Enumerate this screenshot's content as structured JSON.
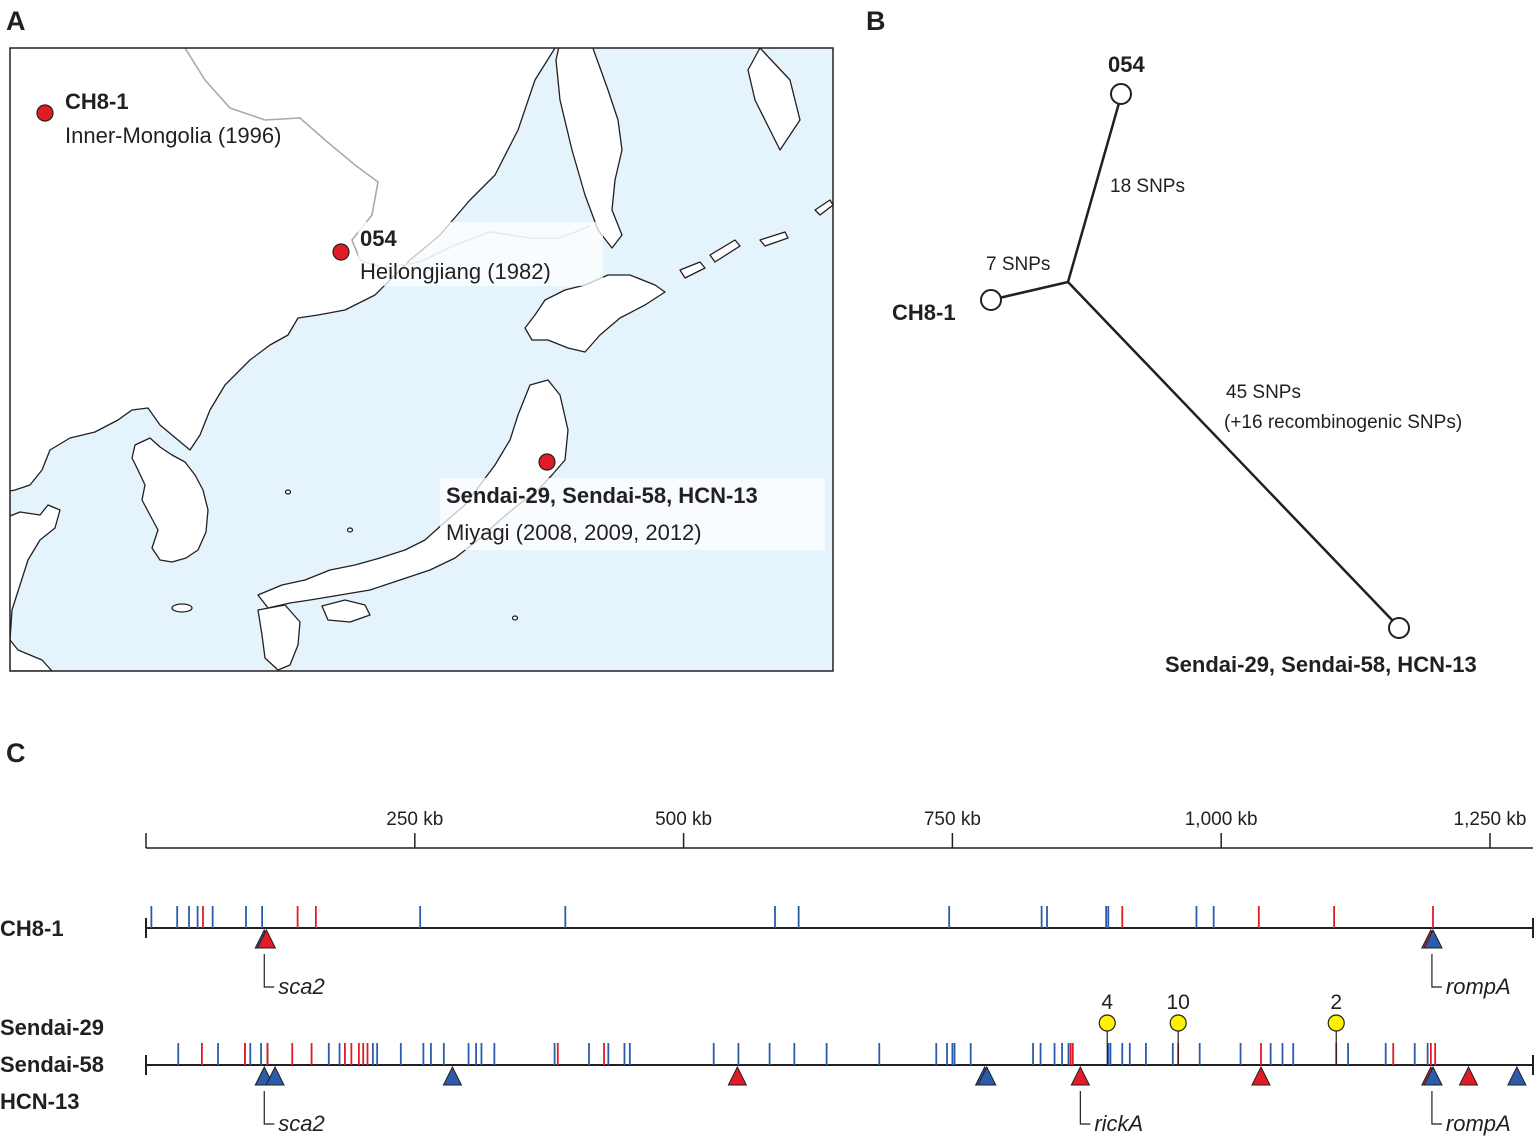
{
  "panels": {
    "a": {
      "letter": "A"
    },
    "b": {
      "letter": "B"
    },
    "c": {
      "letter": "C"
    }
  },
  "map": {
    "colors": {
      "sea": "#e5f3fc",
      "land": "#ffffff",
      "marker": "#e21c26",
      "border": "#aaaaaa"
    },
    "locations": [
      {
        "strain": "CH8-1",
        "place": "Inner-Mongolia (1996)"
      },
      {
        "strain": "054",
        "place": "Heilongjiang (1982)"
      },
      {
        "strain": "Sendai-29, Sendai-58, HCN-13",
        "place": "Miyagi (2008, 2009, 2012)"
      }
    ]
  },
  "tree": {
    "nodes": [
      {
        "label": "054"
      },
      {
        "label": "CH8-1"
      },
      {
        "label": "Sendai-29, Sendai-58, HCN-13"
      }
    ],
    "branches": [
      {
        "to": "054",
        "label": "18 SNPs",
        "snps": 18
      },
      {
        "to": "CH8-1",
        "label": "7 SNPs",
        "snps": 7
      },
      {
        "to": "Sendai-29, Sendai-58, HCN-13",
        "label": "45 SNPs",
        "note": "(+16 recombinogenic SNPs)",
        "snps": 45,
        "recombinogenic_snps": 16
      }
    ]
  },
  "genome": {
    "colors": {
      "blue": "#2a5caa",
      "red": "#e21c26",
      "yellow": "#fff200"
    },
    "axis": {
      "max_kb": 1290,
      "ticks": [
        {
          "kb": 250,
          "label": "250 kb"
        },
        {
          "kb": 500,
          "label": "500 kb"
        },
        {
          "kb": 750,
          "label": "750 kb"
        },
        {
          "kb": 1000,
          "label": "1,000 kb"
        },
        {
          "kb": 1250,
          "label": "1,250 kb"
        }
      ]
    },
    "tracks": [
      {
        "labels": [
          "CH8-1"
        ],
        "snps_blue": [
          5,
          29,
          40,
          48,
          62,
          93,
          108,
          255,
          390,
          585,
          607,
          747,
          833,
          838,
          893,
          895,
          977,
          993
        ],
        "snps_red": [
          53,
          141,
          158,
          908,
          1035,
          1105,
          1197
        ],
        "triangles": [
          {
            "kb": 110,
            "color": "blue"
          },
          {
            "kb": 112,
            "color": "red"
          },
          {
            "kb": 1195,
            "color": "red"
          },
          {
            "kb": 1197,
            "color": "blue"
          }
        ],
        "genes": [
          {
            "name": "sca2",
            "kb": 110
          },
          {
            "name": "rompA",
            "kb": 1196
          }
        ]
      },
      {
        "labels": [
          "Sendai-29",
          "Sendai-58",
          "HCN-13"
        ],
        "snps_blue": [
          30,
          67,
          92,
          97,
          107,
          113,
          170,
          180,
          211,
          215,
          237,
          258,
          265,
          277,
          300,
          307,
          312,
          324,
          380,
          412,
          430,
          445,
          450,
          528,
          551,
          580,
          603,
          633,
          682,
          735,
          745,
          750,
          752,
          767,
          825,
          832,
          845,
          852,
          858,
          895,
          897,
          908,
          915,
          930,
          955,
          980,
          1018,
          1046,
          1057,
          1067,
          1118,
          1153,
          1180,
          1192
        ],
        "snps_red": [
          52,
          92,
          113,
          136,
          154,
          185,
          191,
          198,
          202,
          206,
          383,
          426,
          860,
          862,
          960,
          1037,
          1107,
          1160,
          1195,
          1199
        ],
        "recombination": [
          {
            "kb": 894,
            "count": "4"
          },
          {
            "kb": 960,
            "count": "10"
          },
          {
            "kb": 1107,
            "count": "2"
          }
        ],
        "triangles": [
          {
            "kb": 110,
            "color": "blue"
          },
          {
            "kb": 120,
            "color": "blue"
          },
          {
            "kb": 285,
            "color": "blue"
          },
          {
            "kb": 550,
            "color": "red"
          },
          {
            "kb": 780,
            "color": "blue"
          },
          {
            "kb": 782,
            "color": "blue"
          },
          {
            "kb": 869,
            "color": "red"
          },
          {
            "kb": 1037,
            "color": "red"
          },
          {
            "kb": 1195,
            "color": "red"
          },
          {
            "kb": 1197,
            "color": "blue"
          },
          {
            "kb": 1230,
            "color": "red"
          },
          {
            "kb": 1275,
            "color": "blue"
          }
        ],
        "genes": [
          {
            "name": "sca2",
            "kb": 110
          },
          {
            "name": "rickA",
            "kb": 869
          },
          {
            "name": "rompA",
            "kb": 1196
          }
        ]
      }
    ]
  }
}
